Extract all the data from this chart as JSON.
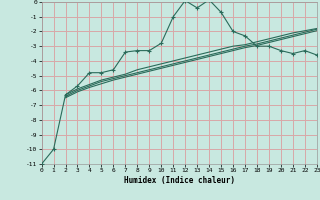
{
  "xlabel": "Humidex (Indice chaleur)",
  "background_color": "#c8e8e0",
  "grid_color": "#d8a8a8",
  "line_color": "#2a6b5a",
  "xlim": [
    0,
    23
  ],
  "ylim": [
    -11,
    0
  ],
  "xticks": [
    0,
    1,
    2,
    3,
    4,
    5,
    6,
    7,
    8,
    9,
    10,
    11,
    12,
    13,
    14,
    15,
    16,
    17,
    18,
    19,
    20,
    21,
    22,
    23
  ],
  "yticks": [
    0,
    -1,
    -2,
    -3,
    -4,
    -5,
    -6,
    -7,
    -8,
    -9,
    -10,
    -11
  ],
  "line1_x": [
    0,
    1,
    2,
    3,
    4,
    5,
    6,
    7,
    8,
    9,
    10,
    11,
    12,
    13,
    14,
    15,
    16,
    17,
    18,
    19,
    20,
    21,
    22,
    23
  ],
  "line1_y": [
    -11,
    -10,
    -6.3,
    -5.7,
    -4.8,
    -4.8,
    -4.6,
    -3.4,
    -3.3,
    -3.3,
    -2.8,
    -1.0,
    0.1,
    -0.4,
    0.15,
    -0.7,
    -2.0,
    -2.3,
    -3.0,
    -3.0,
    -3.3,
    -3.5,
    -3.3,
    -3.6
  ],
  "line2_x": [
    2,
    3,
    4,
    5,
    6,
    7,
    8,
    9,
    10,
    11,
    12,
    13,
    14,
    15,
    16,
    17,
    18,
    19,
    20,
    21,
    22,
    23
  ],
  "line2_y": [
    -6.3,
    -5.9,
    -5.6,
    -5.3,
    -5.1,
    -4.9,
    -4.6,
    -4.4,
    -4.2,
    -4.0,
    -3.8,
    -3.6,
    -3.4,
    -3.2,
    -3.0,
    -2.9,
    -2.7,
    -2.5,
    -2.3,
    -2.1,
    -1.95,
    -1.8
  ],
  "line3_x": [
    2,
    3,
    4,
    5,
    6,
    7,
    8,
    9,
    10,
    11,
    12,
    13,
    14,
    15,
    16,
    17,
    18,
    19,
    20,
    21,
    22,
    23
  ],
  "line3_y": [
    -6.4,
    -6.0,
    -5.7,
    -5.4,
    -5.2,
    -5.0,
    -4.8,
    -4.6,
    -4.4,
    -4.2,
    -4.0,
    -3.8,
    -3.6,
    -3.4,
    -3.2,
    -3.0,
    -2.85,
    -2.65,
    -2.45,
    -2.25,
    -2.05,
    -1.85
  ],
  "line4_x": [
    2,
    3,
    4,
    5,
    6,
    7,
    8,
    9,
    10,
    11,
    12,
    13,
    14,
    15,
    16,
    17,
    18,
    19,
    20,
    21,
    22,
    23
  ],
  "line4_y": [
    -6.5,
    -6.1,
    -5.8,
    -5.55,
    -5.3,
    -5.1,
    -4.9,
    -4.7,
    -4.5,
    -4.3,
    -4.1,
    -3.9,
    -3.7,
    -3.5,
    -3.3,
    -3.1,
    -2.95,
    -2.75,
    -2.55,
    -2.35,
    -2.15,
    -1.95
  ]
}
